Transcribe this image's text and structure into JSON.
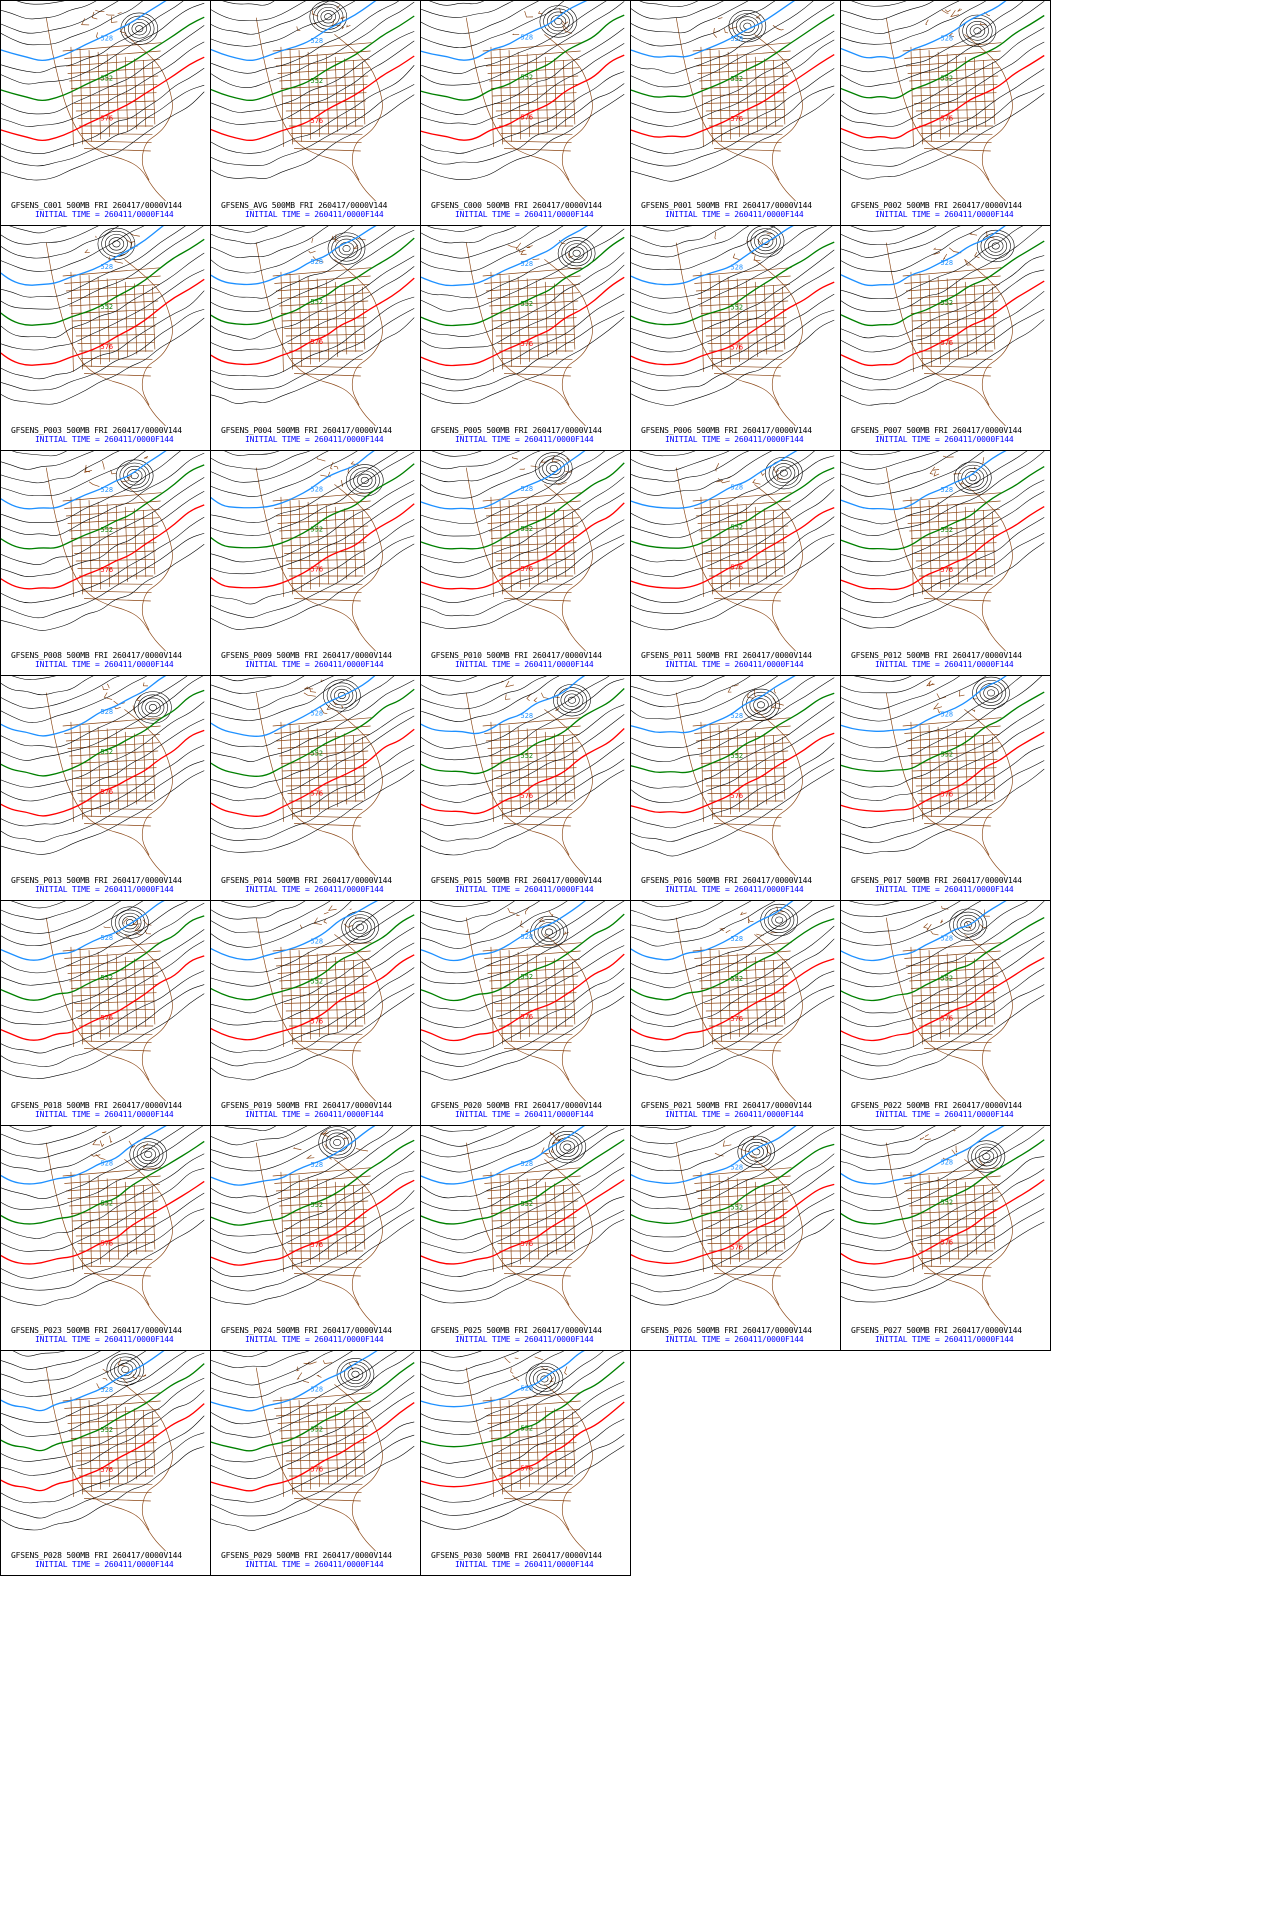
{
  "figure": {
    "colors": {
      "background": "#ffffff",
      "border": "#000000",
      "height_contour": "#000000",
      "line_552": "#008000",
      "line_576": "#ff0000",
      "line_528": "#1e90ff",
      "geography": "#8b4513",
      "caption": "#0000ff"
    },
    "contour_labels": {
      "low": "528",
      "mid": "552",
      "high": "576"
    },
    "initial_time": "INITIAL TIME = 260411/0000F144",
    "panels": [
      {
        "title": "GFSENS_C001 500MB FRI 260417/0000V144"
      },
      {
        "title": "GFSENS_AVG 500MB FRI 260417/0000V144"
      },
      {
        "title": "GFSENS_C000 500MB FRI 260417/0000V144"
      },
      {
        "title": "GFSENS_P001 500MB FRI 260417/0000V144"
      },
      {
        "title": "GFSENS_P002 500MB FRI 260417/0000V144"
      },
      {
        "title": "GFSENS_P003 500MB FRI 260417/0000V144"
      },
      {
        "title": "GFSENS_P004 500MB FRI 260417/0000V144"
      },
      {
        "title": "GFSENS_P005 500MB FRI 260417/0000V144"
      },
      {
        "title": "GFSENS_P006 500MB FRI 260417/0000V144"
      },
      {
        "title": "GFSENS_P007 500MB FRI 260417/0000V144"
      },
      {
        "title": "GFSENS_P008 500MB FRI 260417/0000V144"
      },
      {
        "title": "GFSENS_P009 500MB FRI 260417/0000V144"
      },
      {
        "title": "GFSENS_P010 500MB FRI 260417/0000V144"
      },
      {
        "title": "GFSENS_P011 500MB FRI 260417/0000V144"
      },
      {
        "title": "GFSENS_P012 500MB FRI 260417/0000V144"
      },
      {
        "title": "GFSENS_P013 500MB FRI 260417/0000V144"
      },
      {
        "title": "GFSENS_P014 500MB FRI 260417/0000V144"
      },
      {
        "title": "GFSENS_P015 500MB FRI 260417/0000V144"
      },
      {
        "title": "GFSENS_P016 500MB FRI 260417/0000V144"
      },
      {
        "title": "GFSENS_P017 500MB FRI 260417/0000V144"
      },
      {
        "title": "GFSENS_P018 500MB FRI 260417/0000V144"
      },
      {
        "title": "GFSENS_P019 500MB FRI 260417/0000V144"
      },
      {
        "title": "GFSENS_P020 500MB FRI 260417/0000V144"
      },
      {
        "title": "GFSENS_P021 500MB FRI 260417/0000V144"
      },
      {
        "title": "GFSENS_P022 500MB FRI 260417/0000V144"
      },
      {
        "title": "GFSENS_P023 500MB FRI 260417/0000V144"
      },
      {
        "title": "GFSENS_P024 500MB FRI 260417/0000V144"
      },
      {
        "title": "GFSENS_P025 500MB FRI 260417/0000V144"
      },
      {
        "title": "GFSENS_P026 500MB FRI 260417/0000V144"
      },
      {
        "title": "GFSENS_P027 500MB FRI 260417/0000V144"
      },
      {
        "title": "GFSENS_P028 500MB FRI 260417/0000V144"
      },
      {
        "title": "GFSENS_P029 500MB FRI 260417/0000V144"
      },
      {
        "title": "GFSENS_P030 500MB FRI 260417/0000V144"
      }
    ]
  }
}
